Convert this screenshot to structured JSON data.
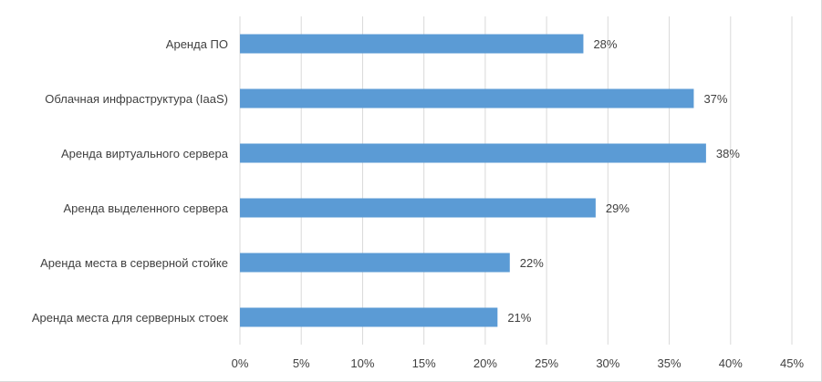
{
  "chart_data": {
    "type": "bar",
    "orientation": "horizontal",
    "categories": [
      "Аренда ПО",
      "Облачная инфраструктура (IaaS)",
      "Аренда виртуального сервера",
      "Аренда выделенного сервера",
      "Аренда места в серверной стойке",
      "Аренда места для серверных стоек"
    ],
    "values": [
      28,
      37,
      38,
      29,
      22,
      21
    ],
    "data_labels": [
      "28%",
      "37%",
      "38%",
      "29%",
      "22%",
      "21%"
    ],
    "xlim": [
      0,
      45
    ],
    "x_ticks": [
      0,
      5,
      10,
      15,
      20,
      25,
      30,
      35,
      40,
      45
    ],
    "x_tick_labels": [
      "0%",
      "5%",
      "10%",
      "15%",
      "20%",
      "25%",
      "30%",
      "35%",
      "40%",
      "45%"
    ],
    "grid": "vertical",
    "legend": "none",
    "colors": {
      "bar": "#5B9BD5",
      "grid": "#d9d9d9",
      "text": "#404040"
    }
  }
}
